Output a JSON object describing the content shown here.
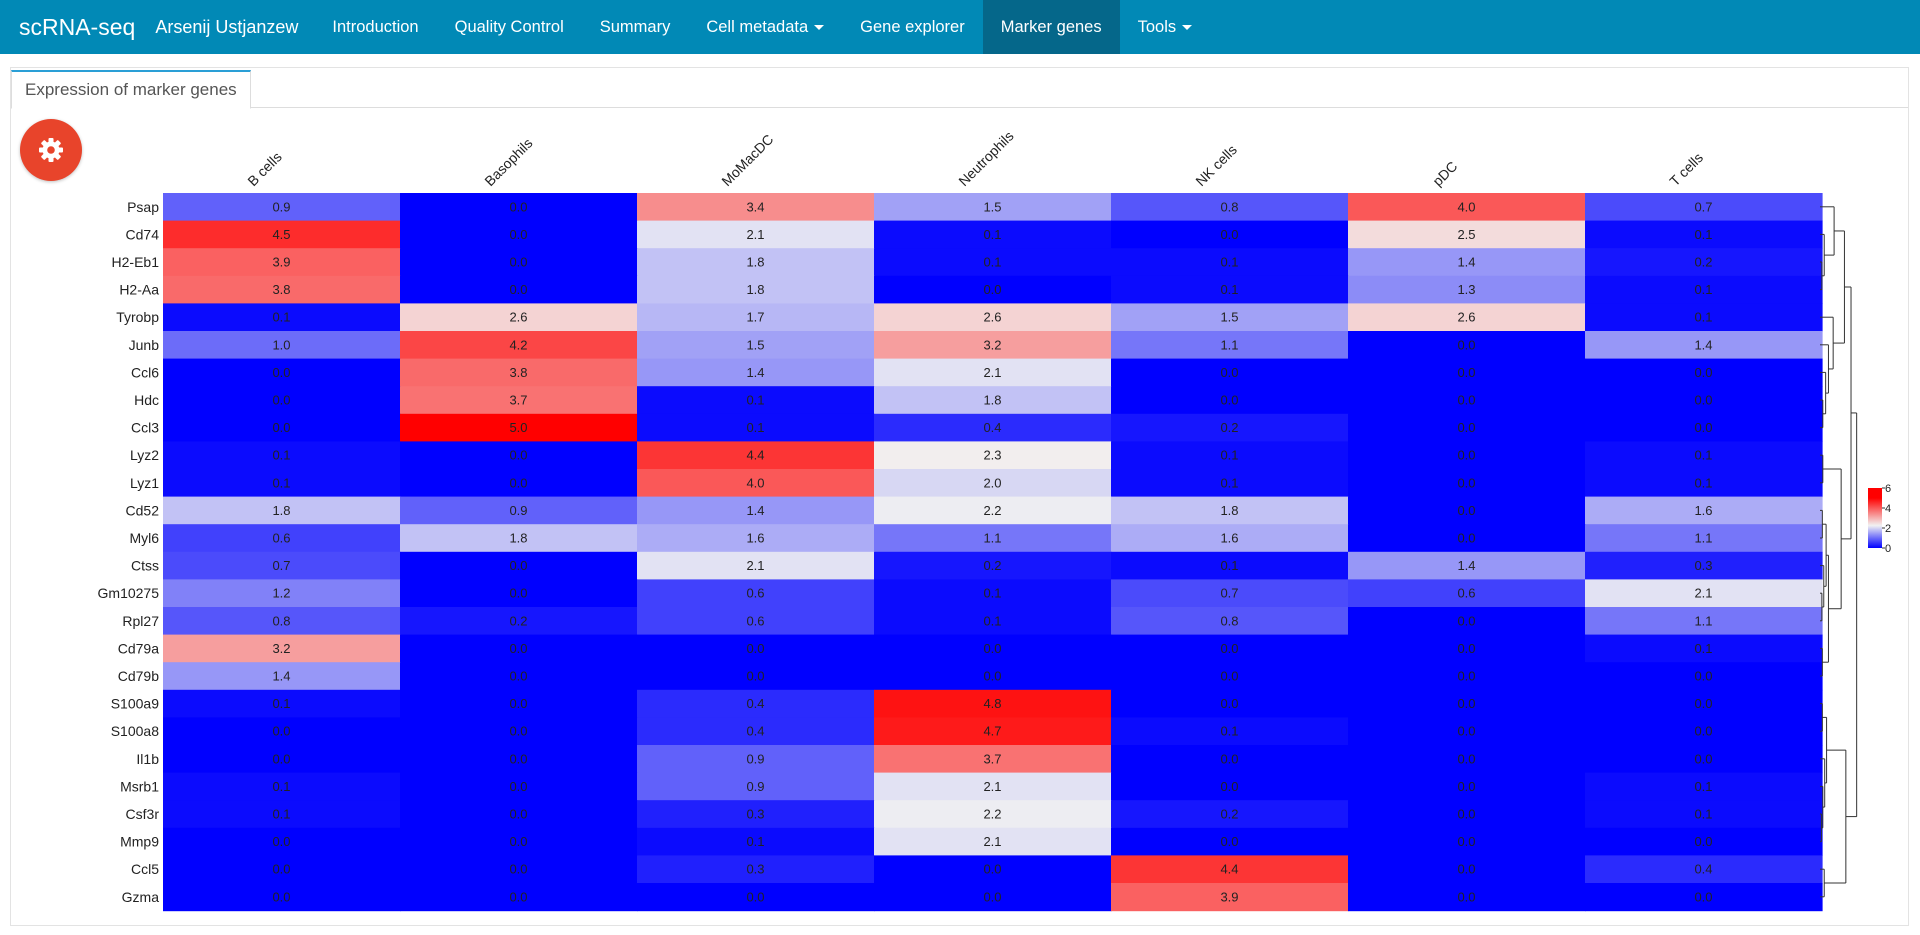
{
  "navbar": {
    "brand": "scRNA-seq",
    "author": "Arsenij Ustjanzew",
    "items": [
      {
        "label": "Introduction",
        "dropdown": false,
        "active": false
      },
      {
        "label": "Quality Control",
        "dropdown": false,
        "active": false
      },
      {
        "label": "Summary",
        "dropdown": false,
        "active": false
      },
      {
        "label": "Cell metadata",
        "dropdown": true,
        "active": false
      },
      {
        "label": "Gene explorer",
        "dropdown": false,
        "active": false
      },
      {
        "label": "Marker genes",
        "dropdown": false,
        "active": true
      },
      {
        "label": "Tools",
        "dropdown": true,
        "active": false
      }
    ],
    "color": "#0189b6",
    "active_color": "#05678a"
  },
  "tab": {
    "label": "Expression of marker genes"
  },
  "settings_button": {
    "icon": "gear-icon",
    "color": "#e8442b"
  },
  "chart_data": {
    "type": "heatmap",
    "columns": [
      "B cells",
      "Basophils",
      "MoMacDC",
      "Neutrophils",
      "NK cells",
      "pDC",
      "T cells"
    ],
    "rows": [
      "Psap",
      "Cd74",
      "H2-Eb1",
      "H2-Aa",
      "Tyrobp",
      "Junb",
      "Ccl6",
      "Hdc",
      "Ccl3",
      "Lyz2",
      "Lyz1",
      "Cd52",
      "Myl6",
      "Ctss",
      "Gm10275",
      "Rpl27",
      "Cd79a",
      "Cd79b",
      "S100a9",
      "S100a8",
      "Il1b",
      "Msrb1",
      "Csf3r",
      "Mmp9",
      "Ccl5",
      "Gzma"
    ],
    "cells": [
      [
        "0.9",
        "0.0",
        "3.4",
        "1.5",
        "0.8",
        "4.0",
        "0.7"
      ],
      [
        "4.5",
        "0.0",
        "2.1",
        "0.1",
        "0.0",
        "2.5",
        "0.1"
      ],
      [
        "3.9",
        "0.0",
        "1.8",
        "0.1",
        "0.1",
        "1.4",
        "0.2"
      ],
      [
        "3.8",
        "0.0",
        "1.8",
        "0.0",
        "0.1",
        "1.3",
        "0.1"
      ],
      [
        "0.1",
        "2.6",
        "1.7",
        "2.6",
        "1.5",
        "2.6",
        "0.1"
      ],
      [
        "1.0",
        "4.2",
        "1.5",
        "3.2",
        "1.1",
        "0.0",
        "1.4"
      ],
      [
        "0.0",
        "3.8",
        "1.4",
        "2.1",
        "0.0",
        "0.0",
        "0.0"
      ],
      [
        "0.0",
        "3.7",
        "0.1",
        "1.8",
        "0.0",
        "0.0",
        "0.0"
      ],
      [
        "0.0",
        "5.0",
        "0.1",
        "0.4",
        "0.2",
        "0.0",
        "0.0"
      ],
      [
        "0.1",
        "0.0",
        "4.4",
        "2.3",
        "0.1",
        "0.0",
        "0.1"
      ],
      [
        "0.1",
        "0.0",
        "4.0",
        "2.0",
        "0.1",
        "0.0",
        "0.1"
      ],
      [
        "1.8",
        "0.9",
        "1.4",
        "2.2",
        "1.8",
        "0.0",
        "1.6"
      ],
      [
        "0.6",
        "1.8",
        "1.6",
        "1.1",
        "1.6",
        "0.0",
        "1.1"
      ],
      [
        "0.7",
        "0.0",
        "2.1",
        "0.2",
        "0.1",
        "1.4",
        "0.3"
      ],
      [
        "1.2",
        "0.0",
        "0.6",
        "0.1",
        "0.7",
        "0.6",
        "2.1"
      ],
      [
        "0.8",
        "0.2",
        "0.6",
        "0.1",
        "0.8",
        "0.0",
        "1.1"
      ],
      [
        "3.2",
        "0.0",
        "0.0",
        "0.0",
        "0.0",
        "0.0",
        "0.1"
      ],
      [
        "1.4",
        "0.0",
        "0.0",
        "0.0",
        "0.0",
        "0.0",
        "0.0"
      ],
      [
        "0.1",
        "0.0",
        "0.4",
        "4.8",
        "0.0",
        "0.0",
        "0.0"
      ],
      [
        "0.0",
        "0.0",
        "0.4",
        "4.7",
        "0.1",
        "0.0",
        "0.0"
      ],
      [
        "0.0",
        "0.0",
        "0.9",
        "3.7",
        "0.0",
        "0.0",
        "0.0"
      ],
      [
        "0.1",
        "0.0",
        "0.9",
        "2.1",
        "0.0",
        "0.0",
        "0.1"
      ],
      [
        "0.1",
        "0.0",
        "0.3",
        "2.2",
        "0.2",
        "0.0",
        "0.1"
      ],
      [
        "0.0",
        "0.0",
        "0.1",
        "2.1",
        "0.0",
        "0.0",
        "0.0"
      ],
      [
        "0.0",
        "0.0",
        "0.3",
        "0.0",
        "4.4",
        "0.0",
        "0.4"
      ],
      [
        "0.0",
        "0.0",
        "0.0",
        "0.0",
        "3.9",
        "0.0",
        "0.0"
      ]
    ],
    "color_scale": {
      "low": "#0000ff",
      "mid": "#f2f2f2",
      "high": "#ff0000",
      "mid_value": 2.25,
      "max_value": 5.0
    },
    "legend_ticks": [
      0,
      2,
      4,
      6
    ],
    "dendrogram": "rows"
  }
}
